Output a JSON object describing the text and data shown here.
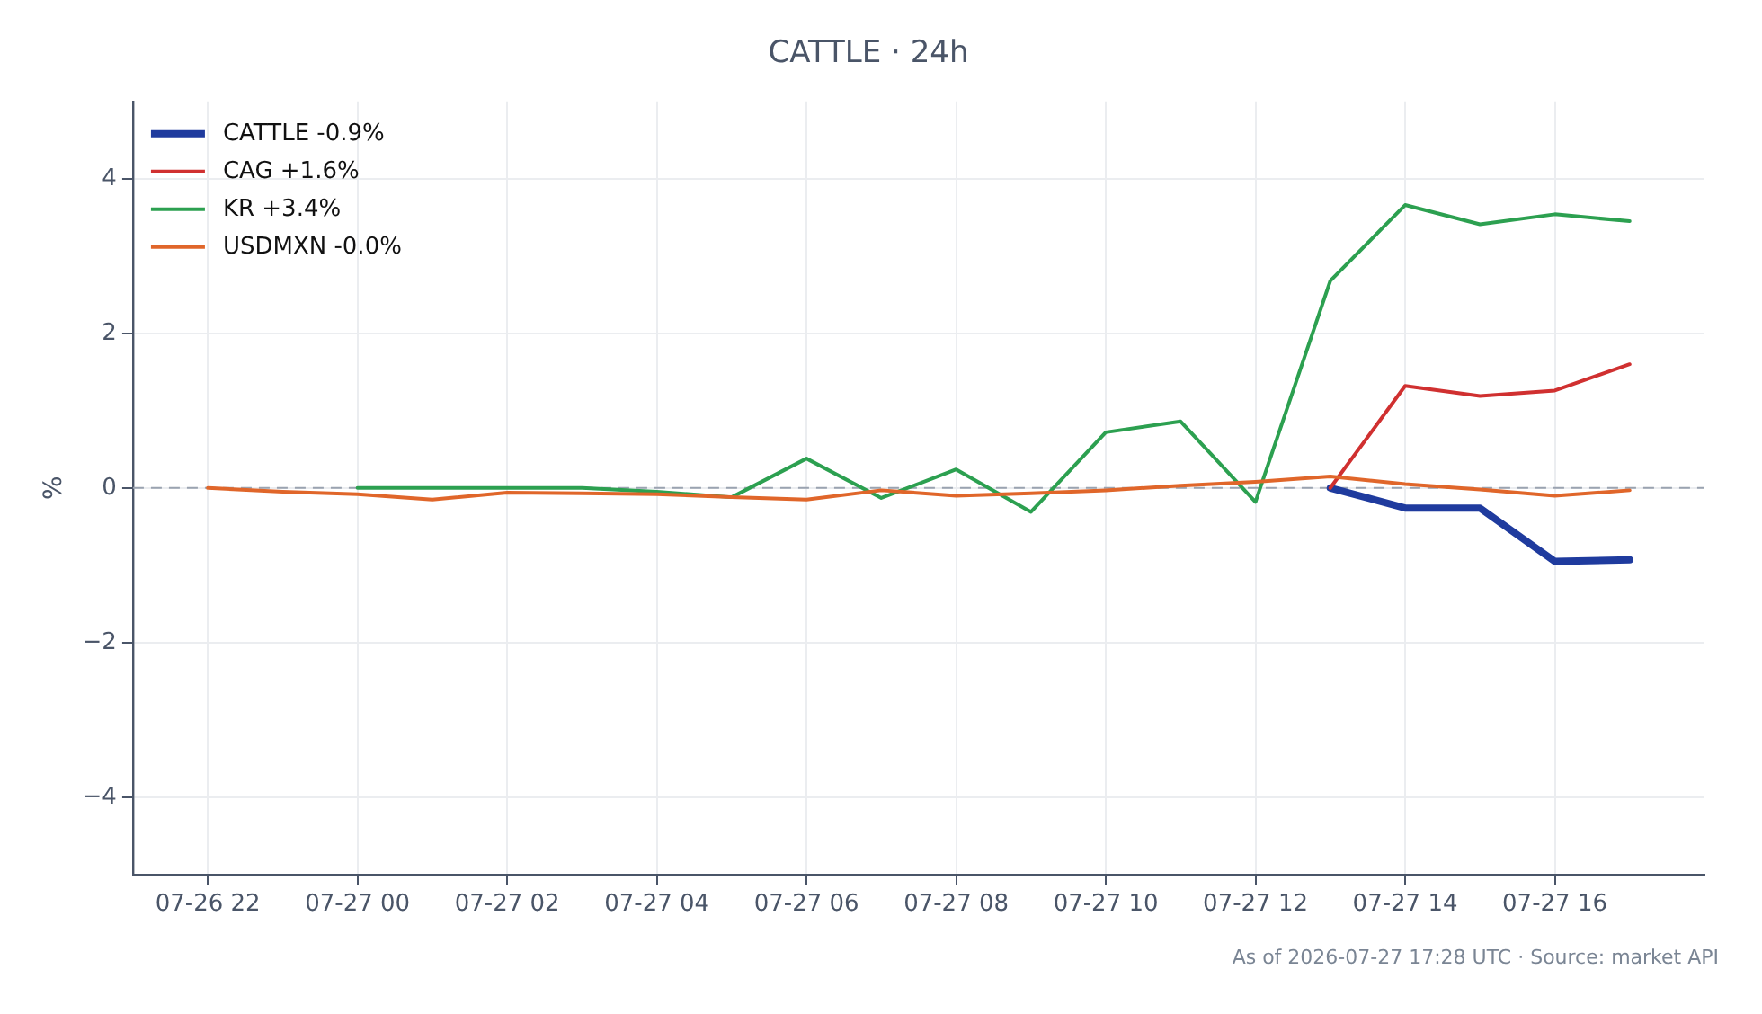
{
  "chart_data": {
    "type": "line",
    "title": "CATTLE · 24h",
    "ylabel": "%",
    "annotations": [
      "As of 2026-07-27 17:28 UTC · Source: market API"
    ],
    "xlim": [
      "2026-07-26T21:00",
      "2026-07-27T18:00"
    ],
    "xticks": [
      {
        "value": "2026-07-26T22:00",
        "label": "07-26 22"
      },
      {
        "value": "2026-07-27T00:00",
        "label": "07-27 00"
      },
      {
        "value": "2026-07-27T02:00",
        "label": "07-27 02"
      },
      {
        "value": "2026-07-27T04:00",
        "label": "07-27 04"
      },
      {
        "value": "2026-07-27T06:00",
        "label": "07-27 06"
      },
      {
        "value": "2026-07-27T08:00",
        "label": "07-27 08"
      },
      {
        "value": "2026-07-27T10:00",
        "label": "07-27 10"
      },
      {
        "value": "2026-07-27T12:00",
        "label": "07-27 12"
      },
      {
        "value": "2026-07-27T14:00",
        "label": "07-27 14"
      },
      {
        "value": "2026-07-27T16:00",
        "label": "07-27 16"
      }
    ],
    "ylim": [
      -5,
      5
    ],
    "yticks": [
      {
        "value": -4,
        "label": "−4"
      },
      {
        "value": -2,
        "label": "−2"
      },
      0,
      2,
      4
    ],
    "grid": true,
    "legend": "top left",
    "marker": "none",
    "line_style": "solid",
    "ref_lines": [
      {
        "axis": "y",
        "value": 0,
        "color": "#9aa3b0",
        "line_style": "dashed"
      }
    ],
    "series": [
      {
        "name": "CATTLE -0.9%",
        "color": "#1f3b9e",
        "x": [
          "2026-07-27T13:00",
          "2026-07-27T14:00",
          "2026-07-27T15:00",
          "2026-07-27T16:00",
          "2026-07-27T17:00"
        ],
        "values": [
          0,
          -0.26,
          -0.26,
          -0.95,
          -0.93
        ]
      },
      {
        "name": "CAG +1.6%",
        "color": "#d03030",
        "x": [
          "2026-07-27T13:00",
          "2026-07-27T14:00",
          "2026-07-27T15:00",
          "2026-07-27T16:00",
          "2026-07-27T17:00"
        ],
        "values": [
          0,
          1.32,
          1.19,
          1.26,
          1.6
        ]
      },
      {
        "name": "KR +3.4%",
        "color": "#2ca050",
        "x": [
          "2026-07-27T00:00",
          "2026-07-27T01:00",
          "2026-07-27T02:00",
          "2026-07-27T03:00",
          "2026-07-27T04:00",
          "2026-07-27T05:00",
          "2026-07-27T06:00",
          "2026-07-27T07:00",
          "2026-07-27T08:00",
          "2026-07-27T09:00",
          "2026-07-27T10:00",
          "2026-07-27T11:00",
          "2026-07-27T12:00",
          "2026-07-27T13:00",
          "2026-07-27T14:00",
          "2026-07-27T15:00",
          "2026-07-27T16:00",
          "2026-07-27T17:00"
        ],
        "values": [
          0,
          0,
          0,
          0,
          -0.05,
          -0.12,
          0.38,
          -0.13,
          0.24,
          -0.31,
          0.72,
          0.86,
          -0.18,
          2.68,
          3.66,
          3.41,
          3.54,
          3.45
        ]
      },
      {
        "name": "USDMXN -0.0%",
        "color": "#e0662a",
        "x": [
          "2026-07-26T22:00",
          "2026-07-26T23:00",
          "2026-07-27T00:00",
          "2026-07-27T01:00",
          "2026-07-27T02:00",
          "2026-07-27T03:00",
          "2026-07-27T04:00",
          "2026-07-27T05:00",
          "2026-07-27T06:00",
          "2026-07-27T07:00",
          "2026-07-27T08:00",
          "2026-07-27T09:00",
          "2026-07-27T10:00",
          "2026-07-27T11:00",
          "2026-07-27T12:00",
          "2026-07-27T13:00",
          "2026-07-27T14:00",
          "2026-07-27T15:00",
          "2026-07-27T16:00",
          "2026-07-27T17:00"
        ],
        "values": [
          0,
          -0.05,
          -0.08,
          -0.15,
          -0.06,
          -0.07,
          -0.08,
          -0.12,
          -0.15,
          -0.03,
          -0.1,
          -0.07,
          -0.03,
          0.03,
          0.08,
          0.15,
          0.05,
          -0.02,
          -0.1,
          -0.03
        ]
      }
    ]
  }
}
